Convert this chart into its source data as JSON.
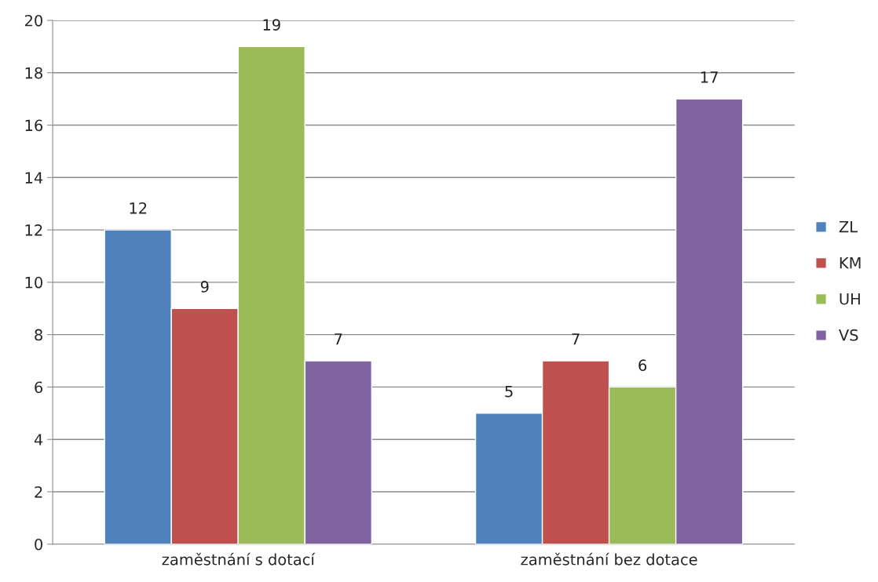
{
  "chart_data": {
    "type": "bar",
    "categories": [
      "zaměstnání s dotací",
      "zaměstnání bez dotace"
    ],
    "series": [
      {
        "name": "ZL",
        "color": "#4f81bd",
        "values": [
          12,
          5
        ]
      },
      {
        "name": "KM",
        "color": "#c0504d",
        "values": [
          9,
          7
        ]
      },
      {
        "name": "UH",
        "color": "#9bbb59",
        "values": [
          19,
          6
        ]
      },
      {
        "name": "VS",
        "color": "#8064a2",
        "values": [
          7,
          17
        ]
      }
    ],
    "ylim": [
      0,
      20
    ],
    "yticks": [
      0,
      2,
      4,
      6,
      8,
      10,
      12,
      14,
      16,
      18,
      20
    ],
    "grid": "y",
    "legend": "right",
    "data_labels": true
  }
}
